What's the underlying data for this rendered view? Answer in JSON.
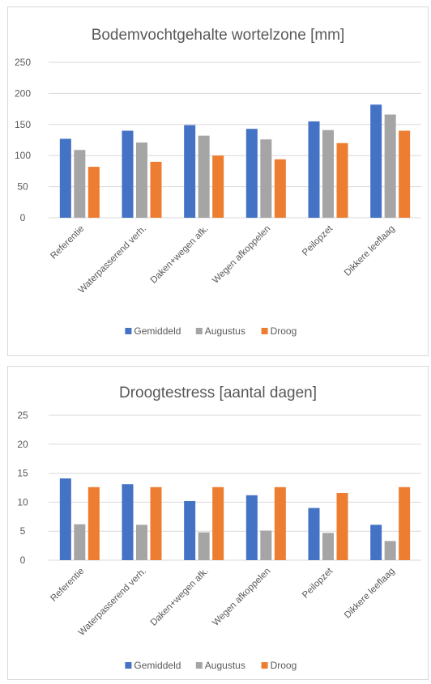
{
  "colors": {
    "Gemiddeld": "#4472c4",
    "Augustus": "#a5a5a5",
    "Droog": "#ed7d31",
    "grid": "#d9d9d9",
    "text": "#595959"
  },
  "chart_data": [
    {
      "type": "bar",
      "title": "Bodemvochtgehalte wortelzone [mm]",
      "xlabel": "",
      "ylabel": "",
      "ylim": [
        0,
        250
      ],
      "yticks": [
        0,
        50,
        100,
        150,
        200,
        250
      ],
      "grid": true,
      "legend": "bottom",
      "categories": [
        "Referentie",
        "Waterpasserend verh.",
        "Daken+wegen afk.",
        "Wegen afkoppelen",
        "Peilopzet",
        "Dikkere leeflaag"
      ],
      "series": [
        {
          "name": "Gemiddeld",
          "values": [
            127,
            140,
            149,
            143,
            155,
            182
          ]
        },
        {
          "name": "Augustus",
          "values": [
            109,
            121,
            132,
            126,
            141,
            166
          ]
        },
        {
          "name": "Droog",
          "values": [
            82,
            90,
            100,
            94,
            120,
            140
          ]
        }
      ]
    },
    {
      "type": "bar",
      "title": "Droogtestress [aantal dagen]",
      "xlabel": "",
      "ylabel": "",
      "ylim": [
        0,
        25
      ],
      "yticks": [
        0,
        5,
        10,
        15,
        20,
        25
      ],
      "grid": true,
      "legend": "bottom",
      "categories": [
        "Referentie",
        "Waterpasserend verh.",
        "Daken+wegen afk.",
        "Wegen afkoppelen",
        "Peilopzet",
        "Dikkere leeflaag"
      ],
      "series": [
        {
          "name": "Gemiddeld",
          "values": [
            14.1,
            13.1,
            10.2,
            11.2,
            9.0,
            6.1
          ]
        },
        {
          "name": "Augustus",
          "values": [
            6.2,
            6.1,
            4.8,
            5.1,
            4.7,
            3.3
          ]
        },
        {
          "name": "Droog",
          "values": [
            12.6,
            12.6,
            12.6,
            12.6,
            11.6,
            12.6
          ]
        }
      ]
    }
  ]
}
